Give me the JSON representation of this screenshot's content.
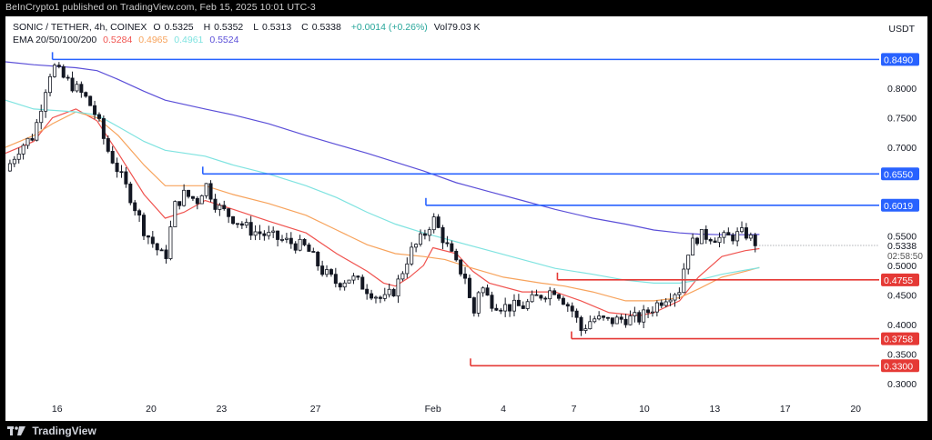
{
  "header": {
    "published": "BeInCrypto1 published on TradingView.com, Feb 15, 2025 10:01 UTC-3"
  },
  "ohlc": {
    "symbol": "SONIC / TETHER, 4h, COINEX",
    "open_label": "O",
    "open": "0.5325",
    "high_label": "H",
    "high": "0.5352",
    "low_label": "L",
    "low": "0.5313",
    "close_label": "C",
    "close": "0.5338",
    "change": "+0.0014 (+0.26%)",
    "volume": "Vol79.03 K"
  },
  "ema_legend": {
    "label": "EMA 20/50/100/200",
    "values": [
      {
        "value": "0.5284",
        "color": "#f0534f"
      },
      {
        "value": "0.4965",
        "color": "#f7a35c"
      },
      {
        "value": "0.4961",
        "color": "#7fe3e0"
      },
      {
        "value": "0.5524",
        "color": "#5b4fd8"
      }
    ]
  },
  "currency": "USDT",
  "footer": {
    "brand": "TradingView"
  },
  "colors": {
    "candle": "#131722",
    "resistance": "#2862ff",
    "support": "#e53935",
    "ema20": "#f0534f",
    "ema50": "#f7a35c",
    "ema100": "#7fe3e0",
    "ema200": "#5b4fd8",
    "grid": "#f0f0f0"
  },
  "chart_data": {
    "type": "candlestick",
    "ylim": [
      0.275,
      0.885
    ],
    "x_range": [
      13.8,
      51.0
    ],
    "y_ticks": [
      "0.8000",
      "0.7500",
      "0.7000",
      "0.5500",
      "0.5000",
      "0.4500",
      "0.4000",
      "0.3500",
      "0.3000"
    ],
    "x_ticks": [
      {
        "x": 16,
        "label": "16"
      },
      {
        "x": 20,
        "label": "20"
      },
      {
        "x": 23,
        "label": "23"
      },
      {
        "x": 27,
        "label": "27"
      },
      {
        "x": 32,
        "label": "Feb"
      },
      {
        "x": 35,
        "label": "4"
      },
      {
        "x": 38,
        "label": "7"
      },
      {
        "x": 41,
        "label": "10"
      },
      {
        "x": 44,
        "label": "13"
      },
      {
        "x": 47,
        "label": "17"
      },
      {
        "x": 50,
        "label": "20"
      }
    ],
    "current_price": "0.5338",
    "countdown": "02:58:50",
    "levels": [
      {
        "value": 0.849,
        "label": "0.8490",
        "kind": "resistance",
        "start_x": 15.8
      },
      {
        "value": 0.655,
        "label": "0.6550",
        "kind": "resistance",
        "start_x": 22.2
      },
      {
        "value": 0.6019,
        "label": "0.6019",
        "kind": "resistance",
        "start_x": 31.7
      },
      {
        "value": 0.4755,
        "label": "0.4755",
        "kind": "support",
        "start_x": 37.3
      },
      {
        "value": 0.3758,
        "label": "0.3758",
        "kind": "support",
        "start_x": 37.9
      },
      {
        "value": 0.33,
        "label": "0.3300",
        "kind": "support",
        "start_x": 33.6
      }
    ],
    "close_path": [
      [
        13.8,
        0.66
      ],
      [
        14.4,
        0.7
      ],
      [
        15.0,
        0.72
      ],
      [
        15.5,
        0.8
      ],
      [
        15.8,
        0.84
      ],
      [
        16.2,
        0.82
      ],
      [
        16.8,
        0.8
      ],
      [
        17.3,
        0.78
      ],
      [
        17.7,
        0.75
      ],
      [
        18.1,
        0.7
      ],
      [
        18.6,
        0.66
      ],
      [
        19.2,
        0.61
      ],
      [
        19.7,
        0.56
      ],
      [
        20.2,
        0.53
      ],
      [
        20.6,
        0.51
      ],
      [
        21.0,
        0.6
      ],
      [
        21.4,
        0.62
      ],
      [
        22.0,
        0.61
      ],
      [
        22.3,
        0.64
      ],
      [
        22.8,
        0.6
      ],
      [
        23.5,
        0.58
      ],
      [
        24.2,
        0.56
      ],
      [
        25.0,
        0.55
      ],
      [
        25.8,
        0.54
      ],
      [
        26.6,
        0.53
      ],
      [
        27.3,
        0.49
      ],
      [
        27.9,
        0.47
      ],
      [
        28.5,
        0.48
      ],
      [
        29.2,
        0.46
      ],
      [
        29.9,
        0.44
      ],
      [
        30.4,
        0.46
      ],
      [
        31.0,
        0.52
      ],
      [
        31.6,
        0.55
      ],
      [
        32.0,
        0.58
      ],
      [
        32.5,
        0.54
      ],
      [
        33.0,
        0.5
      ],
      [
        33.4,
        0.48
      ],
      [
        33.7,
        0.41
      ],
      [
        34.0,
        0.47
      ],
      [
        34.4,
        0.44
      ],
      [
        35.0,
        0.43
      ],
      [
        35.8,
        0.43
      ],
      [
        36.6,
        0.45
      ],
      [
        37.2,
        0.46
      ],
      [
        37.6,
        0.44
      ],
      [
        38.0,
        0.42
      ],
      [
        38.3,
        0.39
      ],
      [
        38.8,
        0.41
      ],
      [
        39.5,
        0.405
      ],
      [
        40.2,
        0.41
      ],
      [
        40.8,
        0.41
      ],
      [
        41.4,
        0.43
      ],
      [
        42.0,
        0.45
      ],
      [
        42.5,
        0.46
      ],
      [
        42.7,
        0.5
      ],
      [
        42.9,
        0.53
      ],
      [
        43.3,
        0.55
      ],
      [
        43.8,
        0.55
      ],
      [
        44.3,
        0.545
      ],
      [
        44.8,
        0.55
      ],
      [
        45.3,
        0.555
      ],
      [
        45.6,
        0.542
      ],
      [
        45.9,
        0.5338
      ]
    ],
    "series": [
      {
        "name": "EMA 20",
        "color": "#f0534f",
        "points": [
          [
            13.8,
            0.69
          ],
          [
            15.0,
            0.71
          ],
          [
            15.8,
            0.75
          ],
          [
            16.8,
            0.765
          ],
          [
            17.7,
            0.745
          ],
          [
            18.6,
            0.69
          ],
          [
            19.7,
            0.62
          ],
          [
            20.6,
            0.58
          ],
          [
            21.4,
            0.59
          ],
          [
            22.3,
            0.61
          ],
          [
            23.5,
            0.595
          ],
          [
            25.0,
            0.575
          ],
          [
            26.6,
            0.555
          ],
          [
            27.9,
            0.52
          ],
          [
            29.2,
            0.49
          ],
          [
            29.9,
            0.47
          ],
          [
            30.4,
            0.465
          ],
          [
            31.0,
            0.48
          ],
          [
            31.6,
            0.5
          ],
          [
            32.0,
            0.53
          ],
          [
            33.0,
            0.52
          ],
          [
            33.7,
            0.49
          ],
          [
            34.4,
            0.47
          ],
          [
            35.8,
            0.455
          ],
          [
            37.2,
            0.455
          ],
          [
            38.3,
            0.44
          ],
          [
            39.5,
            0.42
          ],
          [
            40.8,
            0.415
          ],
          [
            41.4,
            0.42
          ],
          [
            42.5,
            0.44
          ],
          [
            43.3,
            0.48
          ],
          [
            44.3,
            0.515
          ],
          [
            45.3,
            0.525
          ],
          [
            45.9,
            0.5284
          ]
        ]
      },
      {
        "name": "EMA 50",
        "color": "#f7a35c",
        "points": [
          [
            13.8,
            0.7
          ],
          [
            15.0,
            0.72
          ],
          [
            15.8,
            0.74
          ],
          [
            16.8,
            0.76
          ],
          [
            17.7,
            0.75
          ],
          [
            18.6,
            0.72
          ],
          [
            19.7,
            0.67
          ],
          [
            20.6,
            0.635
          ],
          [
            22.3,
            0.635
          ],
          [
            23.5,
            0.62
          ],
          [
            25.0,
            0.605
          ],
          [
            26.6,
            0.585
          ],
          [
            27.9,
            0.56
          ],
          [
            29.2,
            0.535
          ],
          [
            30.4,
            0.52
          ],
          [
            31.6,
            0.515
          ],
          [
            32.5,
            0.51
          ],
          [
            33.7,
            0.495
          ],
          [
            35.0,
            0.48
          ],
          [
            36.6,
            0.47
          ],
          [
            37.6,
            0.465
          ],
          [
            38.8,
            0.455
          ],
          [
            40.2,
            0.44
          ],
          [
            41.4,
            0.44
          ],
          [
            42.5,
            0.445
          ],
          [
            43.3,
            0.46
          ],
          [
            44.3,
            0.48
          ],
          [
            45.3,
            0.49
          ],
          [
            45.9,
            0.4965
          ]
        ]
      },
      {
        "name": "EMA 100",
        "color": "#7fe3e0",
        "points": [
          [
            13.8,
            0.78
          ],
          [
            15.0,
            0.765
          ],
          [
            16.8,
            0.76
          ],
          [
            17.7,
            0.755
          ],
          [
            18.6,
            0.735
          ],
          [
            19.7,
            0.71
          ],
          [
            20.6,
            0.695
          ],
          [
            22.3,
            0.685
          ],
          [
            23.5,
            0.67
          ],
          [
            25.0,
            0.655
          ],
          [
            26.6,
            0.635
          ],
          [
            27.9,
            0.615
          ],
          [
            29.2,
            0.59
          ],
          [
            30.4,
            0.57
          ],
          [
            31.6,
            0.555
          ],
          [
            33.0,
            0.54
          ],
          [
            34.4,
            0.525
          ],
          [
            35.8,
            0.51
          ],
          [
            37.2,
            0.495
          ],
          [
            38.8,
            0.485
          ],
          [
            40.2,
            0.475
          ],
          [
            41.4,
            0.47
          ],
          [
            42.5,
            0.47
          ],
          [
            43.3,
            0.475
          ],
          [
            44.3,
            0.485
          ],
          [
            45.3,
            0.492
          ],
          [
            45.9,
            0.4961
          ]
        ]
      },
      {
        "name": "EMA 200",
        "color": "#5b4fd8",
        "points": [
          [
            13.8,
            0.845
          ],
          [
            15.0,
            0.84
          ],
          [
            16.8,
            0.835
          ],
          [
            17.7,
            0.83
          ],
          [
            18.6,
            0.815
          ],
          [
            19.7,
            0.795
          ],
          [
            20.6,
            0.78
          ],
          [
            22.3,
            0.765
          ],
          [
            23.5,
            0.755
          ],
          [
            25.0,
            0.74
          ],
          [
            26.6,
            0.72
          ],
          [
            27.9,
            0.705
          ],
          [
            29.2,
            0.69
          ],
          [
            30.4,
            0.675
          ],
          [
            31.6,
            0.66
          ],
          [
            33.0,
            0.64
          ],
          [
            34.4,
            0.625
          ],
          [
            35.8,
            0.61
          ],
          [
            37.2,
            0.595
          ],
          [
            38.8,
            0.58
          ],
          [
            40.2,
            0.57
          ],
          [
            41.4,
            0.56
          ],
          [
            42.5,
            0.555
          ],
          [
            43.3,
            0.553
          ],
          [
            44.3,
            0.552
          ],
          [
            45.3,
            0.552
          ],
          [
            45.9,
            0.5524
          ]
        ]
      }
    ]
  }
}
